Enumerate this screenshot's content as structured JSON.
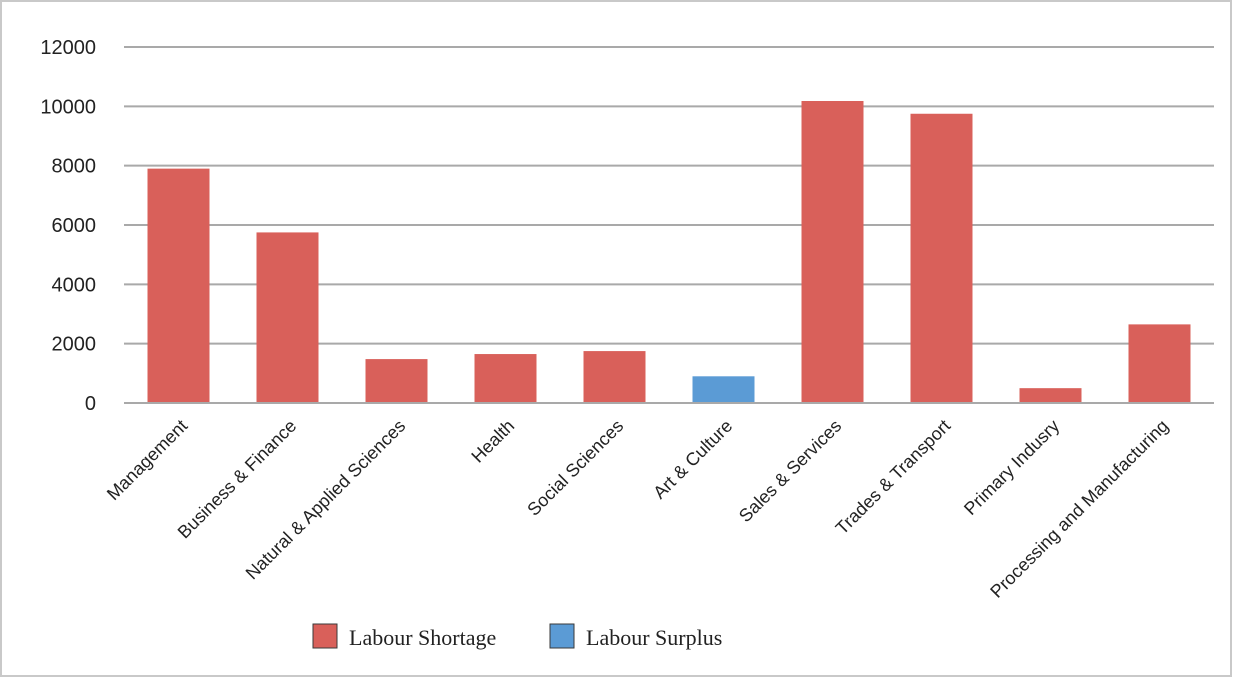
{
  "chart_data": {
    "type": "bar",
    "title": "",
    "xlabel": "",
    "ylabel": "",
    "ylim": [
      0,
      12000
    ],
    "yticks": [
      0,
      2000,
      4000,
      6000,
      8000,
      10000,
      12000
    ],
    "grid": true,
    "legend_position": "bottom",
    "categories": [
      "Management",
      "Business & Finance",
      "Natural & Applied Sciences",
      "Health",
      "Social Sciences",
      "Art & Culture",
      "Sales & Services",
      "Trades & Transport",
      "Primary Indusry",
      "Processing and Manufacturing"
    ],
    "series": [
      {
        "name": "Labour Shortage",
        "color": "#d9605a",
        "values": [
          7900,
          5750,
          1480,
          1650,
          1750,
          null,
          10180,
          9750,
          500,
          2650
        ]
      },
      {
        "name": "Labour Surplus",
        "color": "#5b9bd5",
        "values": [
          null,
          null,
          null,
          null,
          null,
          900,
          null,
          null,
          null,
          null
        ]
      }
    ]
  }
}
